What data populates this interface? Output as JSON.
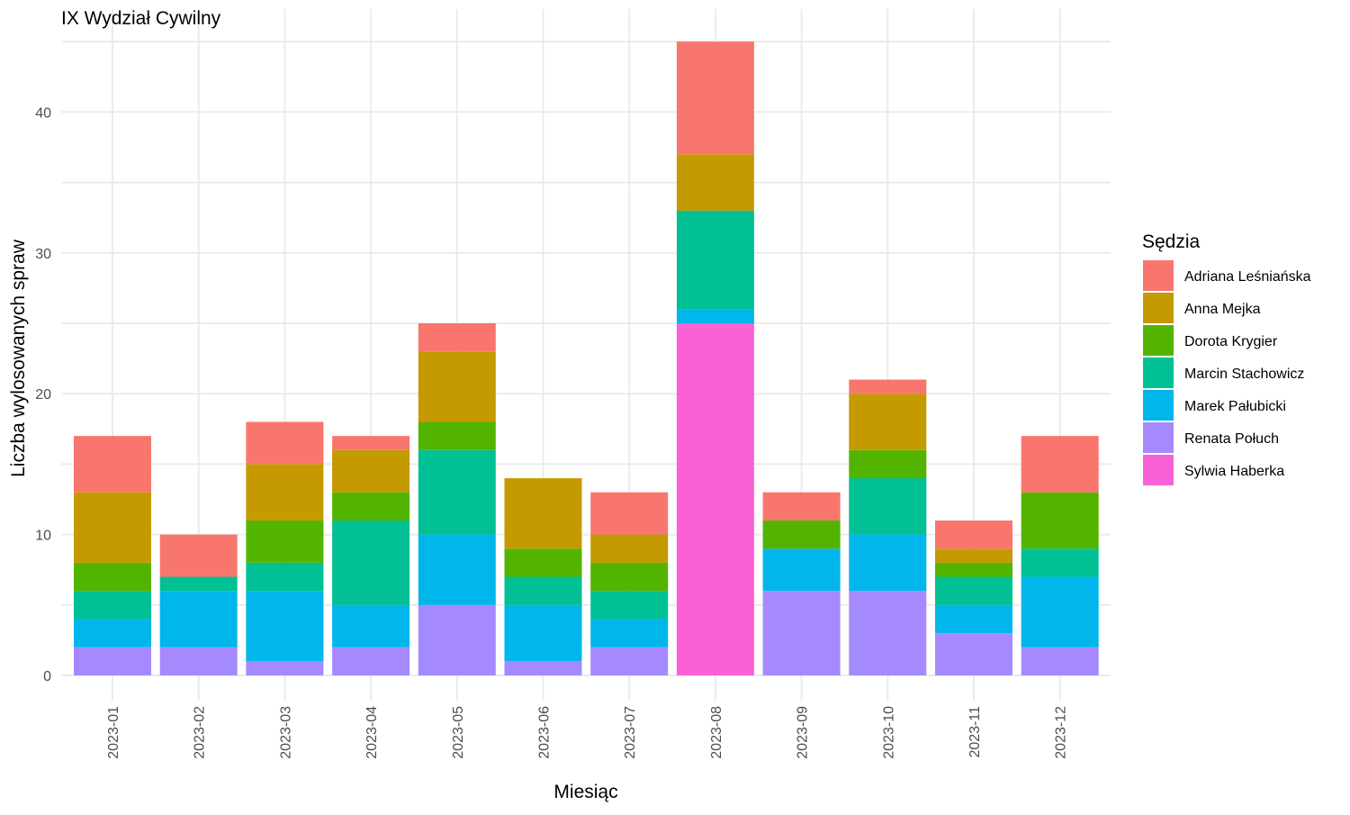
{
  "chart_data": {
    "type": "bar",
    "stacked": true,
    "title": "IX Wydział Cywilny",
    "xlabel": "Miesiąc",
    "ylabel": "Liczba wylosowanych spraw",
    "ylim": [
      0,
      47
    ],
    "yticks": [
      0,
      10,
      20,
      30,
      40
    ],
    "grid": true,
    "legend_title": "Sędzia",
    "legend_position": "right",
    "categories": [
      "2023-01",
      "2023-02",
      "2023-03",
      "2023-04",
      "2023-05",
      "2023-06",
      "2023-07",
      "2023-08",
      "2023-09",
      "2023-10",
      "2023-11",
      "2023-12"
    ],
    "series": [
      {
        "name": "Adriana Leśniańska",
        "color": "#F8766D",
        "values": [
          4,
          3,
          3,
          1,
          2,
          0,
          3,
          8,
          2,
          1,
          2,
          4
        ]
      },
      {
        "name": "Anna Mejka",
        "color": "#C49A00",
        "values": [
          5,
          0,
          4,
          3,
          5,
          5,
          2,
          4,
          0,
          4,
          1,
          0
        ]
      },
      {
        "name": "Dorota Krygier",
        "color": "#53B400",
        "values": [
          2,
          0,
          3,
          2,
          2,
          2,
          2,
          0,
          2,
          2,
          1,
          4
        ]
      },
      {
        "name": "Marcin Stachowicz",
        "color": "#00C094",
        "values": [
          2,
          1,
          2,
          6,
          6,
          2,
          2,
          7,
          0,
          4,
          2,
          2
        ]
      },
      {
        "name": "Marek Pałubicki",
        "color": "#00B6EB",
        "values": [
          2,
          4,
          5,
          3,
          5,
          4,
          2,
          1,
          3,
          4,
          2,
          5
        ]
      },
      {
        "name": "Renata Połuch",
        "color": "#A58AFF",
        "values": [
          2,
          2,
          1,
          2,
          5,
          1,
          2,
          0,
          6,
          6,
          3,
          2
        ]
      },
      {
        "name": "Sylwia Haberka",
        "color": "#FB61D7",
        "values": [
          0,
          0,
          0,
          0,
          0,
          0,
          0,
          25,
          0,
          0,
          0,
          0
        ]
      }
    ]
  }
}
